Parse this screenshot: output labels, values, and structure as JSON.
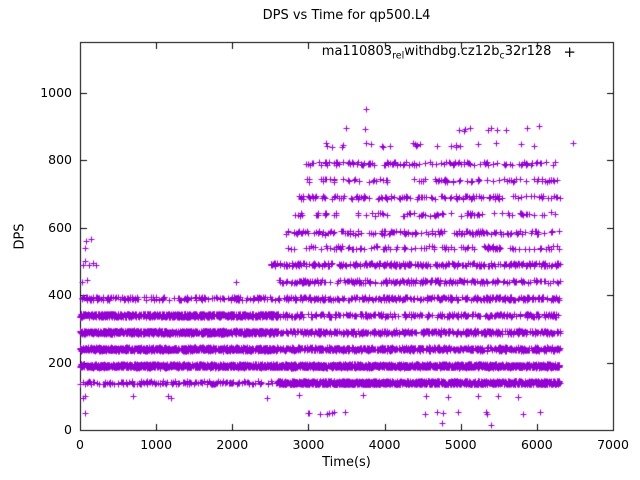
{
  "window": {
    "title": "DPS vs Time for qp500.L4"
  },
  "chart_data": {
    "type": "scatter",
    "title": "DPS vs Time for qp500.L4",
    "xlabel": "Time(s)",
    "ylabel": "DPS",
    "xlim": [
      0,
      7000
    ],
    "ylim": [
      0,
      1150
    ],
    "xticks": [
      0,
      1000,
      2000,
      3000,
      4000,
      5000,
      6000,
      7000
    ],
    "yticks": [
      0,
      200,
      400,
      600,
      800,
      1000
    ],
    "grid": false,
    "marker": {
      "shape": "plus",
      "color": "#9400D3",
      "size": 7,
      "glyph": "+"
    },
    "legend": {
      "position": "top-right-inside",
      "label_plain": "ma110803_rel_withdbg.cz12b_c32r128",
      "part1": "ma110803",
      "sub1": "rel",
      "part2": "withdbg.cz12b",
      "sub2": "c",
      "part3": "32r128"
    },
    "series": [
      {
        "name": "ma110803_rel_withdbg.cz12b_c32r128",
        "bands": [
          {
            "y": 140,
            "jitter": 5,
            "segments": [
              [
                0,
                2600,
                160
              ],
              [
                2600,
                6300,
                1400
              ]
            ]
          },
          {
            "y": 190,
            "jitter": 5,
            "segments": [
              [
                0,
                2600,
                900
              ],
              [
                2600,
                6300,
                1400
              ]
            ]
          },
          {
            "y": 240,
            "jitter": 5,
            "segments": [
              [
                0,
                2600,
                850
              ],
              [
                2600,
                6300,
                650
              ]
            ]
          },
          {
            "y": 290,
            "jitter": 5,
            "segments": [
              [
                0,
                2600,
                850
              ],
              [
                2600,
                6300,
                450
              ]
            ]
          },
          {
            "y": 340,
            "jitter": 5,
            "segments": [
              [
                0,
                2600,
                800
              ],
              [
                2600,
                6300,
                280
              ]
            ]
          },
          {
            "y": 390,
            "jitter": 5,
            "segments": [
              [
                0,
                2600,
                170
              ],
              [
                2600,
                6300,
                330
              ]
            ]
          },
          {
            "y": 440,
            "jitter": 5,
            "segments": [
              [
                2600,
                6300,
                230
              ]
            ]
          },
          {
            "y": 490,
            "jitter": 5,
            "segments": [
              [
                2500,
                6300,
                300
              ]
            ]
          },
          {
            "y": 540,
            "jitter": 5,
            "segments": [
              [
                2700,
                6300,
                110
              ]
            ]
          },
          {
            "y": 585,
            "jitter": 6,
            "segments": [
              [
                2700,
                6300,
                150
              ]
            ]
          },
          {
            "y": 640,
            "jitter": 5,
            "segments": [
              [
                2800,
                6300,
                85
              ]
            ]
          },
          {
            "y": 690,
            "jitter": 5,
            "segments": [
              [
                2850,
                6300,
                130
              ]
            ]
          },
          {
            "y": 740,
            "jitter": 5,
            "segments": [
              [
                2900,
                6300,
                85
              ]
            ]
          },
          {
            "y": 790,
            "jitter": 5,
            "segments": [
              [
                2950,
                6300,
                120
              ]
            ]
          },
          {
            "y": 845,
            "jitter": 6,
            "segments": [
              [
                3200,
                6250,
                24
              ]
            ]
          },
          {
            "y": 895,
            "jitter": 8,
            "segments": [
              [
                3300,
                6100,
                12
              ]
            ]
          },
          {
            "y": 100,
            "jitter": 4,
            "segments": [
              [
                2800,
                6200,
                8
              ]
            ]
          },
          {
            "y": 50,
            "jitter": 4,
            "segments": [
              [
                2700,
                6250,
                16
              ]
            ]
          }
        ],
        "outliers": [
          [
            35,
            95
          ],
          [
            70,
            100
          ],
          [
            60,
            50
          ],
          [
            30,
            440
          ],
          [
            95,
            445
          ],
          [
            2050,
            440
          ],
          [
            45,
            490
          ],
          [
            115,
            490
          ],
          [
            165,
            495
          ],
          [
            60,
            500
          ],
          [
            210,
            490
          ],
          [
            65,
            540
          ],
          [
            75,
            560
          ],
          [
            140,
            565
          ],
          [
            700,
            100
          ],
          [
            1150,
            100
          ],
          [
            1190,
            95
          ],
          [
            2450,
            95
          ],
          [
            4750,
            20
          ],
          [
            5400,
            15
          ],
          [
            3750,
            950
          ],
          [
            6480,
            850
          ]
        ]
      }
    ]
  }
}
